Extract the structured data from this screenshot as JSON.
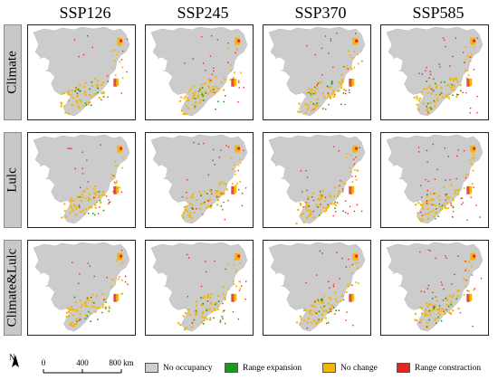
{
  "columns": [
    "SSP126",
    "SSP245",
    "SSP370",
    "SSP585"
  ],
  "rows": [
    "Climate",
    "Lulc",
    "Climate&Lulc"
  ],
  "north_label": "N",
  "scale_bar": {
    "ticks": [
      "0",
      "400",
      "800 km"
    ]
  },
  "legend": [
    {
      "label": "No occupancy",
      "color": "#cfcfcf"
    },
    {
      "label": "Range expansion",
      "color": "#1a9a1a"
    },
    {
      "label": "No change",
      "color": "#f2b705"
    },
    {
      "label": "Range constraction",
      "color": "#e8241c"
    }
  ],
  "colors": {
    "land": "#cccccc",
    "expansion": "#1a9a1a",
    "nochange": "#f2b705",
    "contraction": "#e8241c",
    "row_label_bg": "#c8c8c8"
  }
}
